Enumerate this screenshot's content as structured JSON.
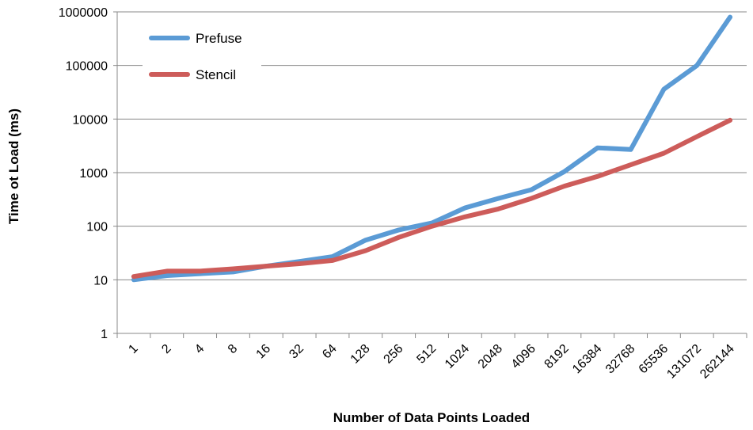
{
  "chart_data": {
    "type": "line",
    "title": "",
    "xlabel": "Number of Data Points Loaded",
    "ylabel": "Time ot Load (ms)",
    "y_scale": "log",
    "ylim": [
      1,
      1000000
    ],
    "y_ticks": [
      "1",
      "10",
      "100",
      "1000",
      "10000",
      "100000",
      "1000000"
    ],
    "grid": "horizontal",
    "legend_position": "top-left",
    "categories": [
      "1",
      "2",
      "4",
      "8",
      "16",
      "32",
      "64",
      "128",
      "256",
      "512",
      "1024",
      "2048",
      "4096",
      "8192",
      "16384",
      "32768",
      "65536",
      "131072",
      "262144"
    ],
    "series": [
      {
        "name": "Prefuse",
        "color": "#5b9bd5",
        "values": [
          10,
          12,
          13,
          14,
          18,
          22,
          27,
          55,
          85,
          115,
          220,
          330,
          480,
          1050,
          2900,
          2700,
          36000,
          100000,
          800000
        ]
      },
      {
        "name": "Stencil",
        "color": "#cd5c5a",
        "values": [
          11.5,
          14.5,
          14.5,
          16,
          18,
          20,
          23,
          35,
          62,
          100,
          150,
          210,
          330,
          560,
          850,
          1400,
          2300,
          4700,
          9500
        ]
      }
    ]
  }
}
